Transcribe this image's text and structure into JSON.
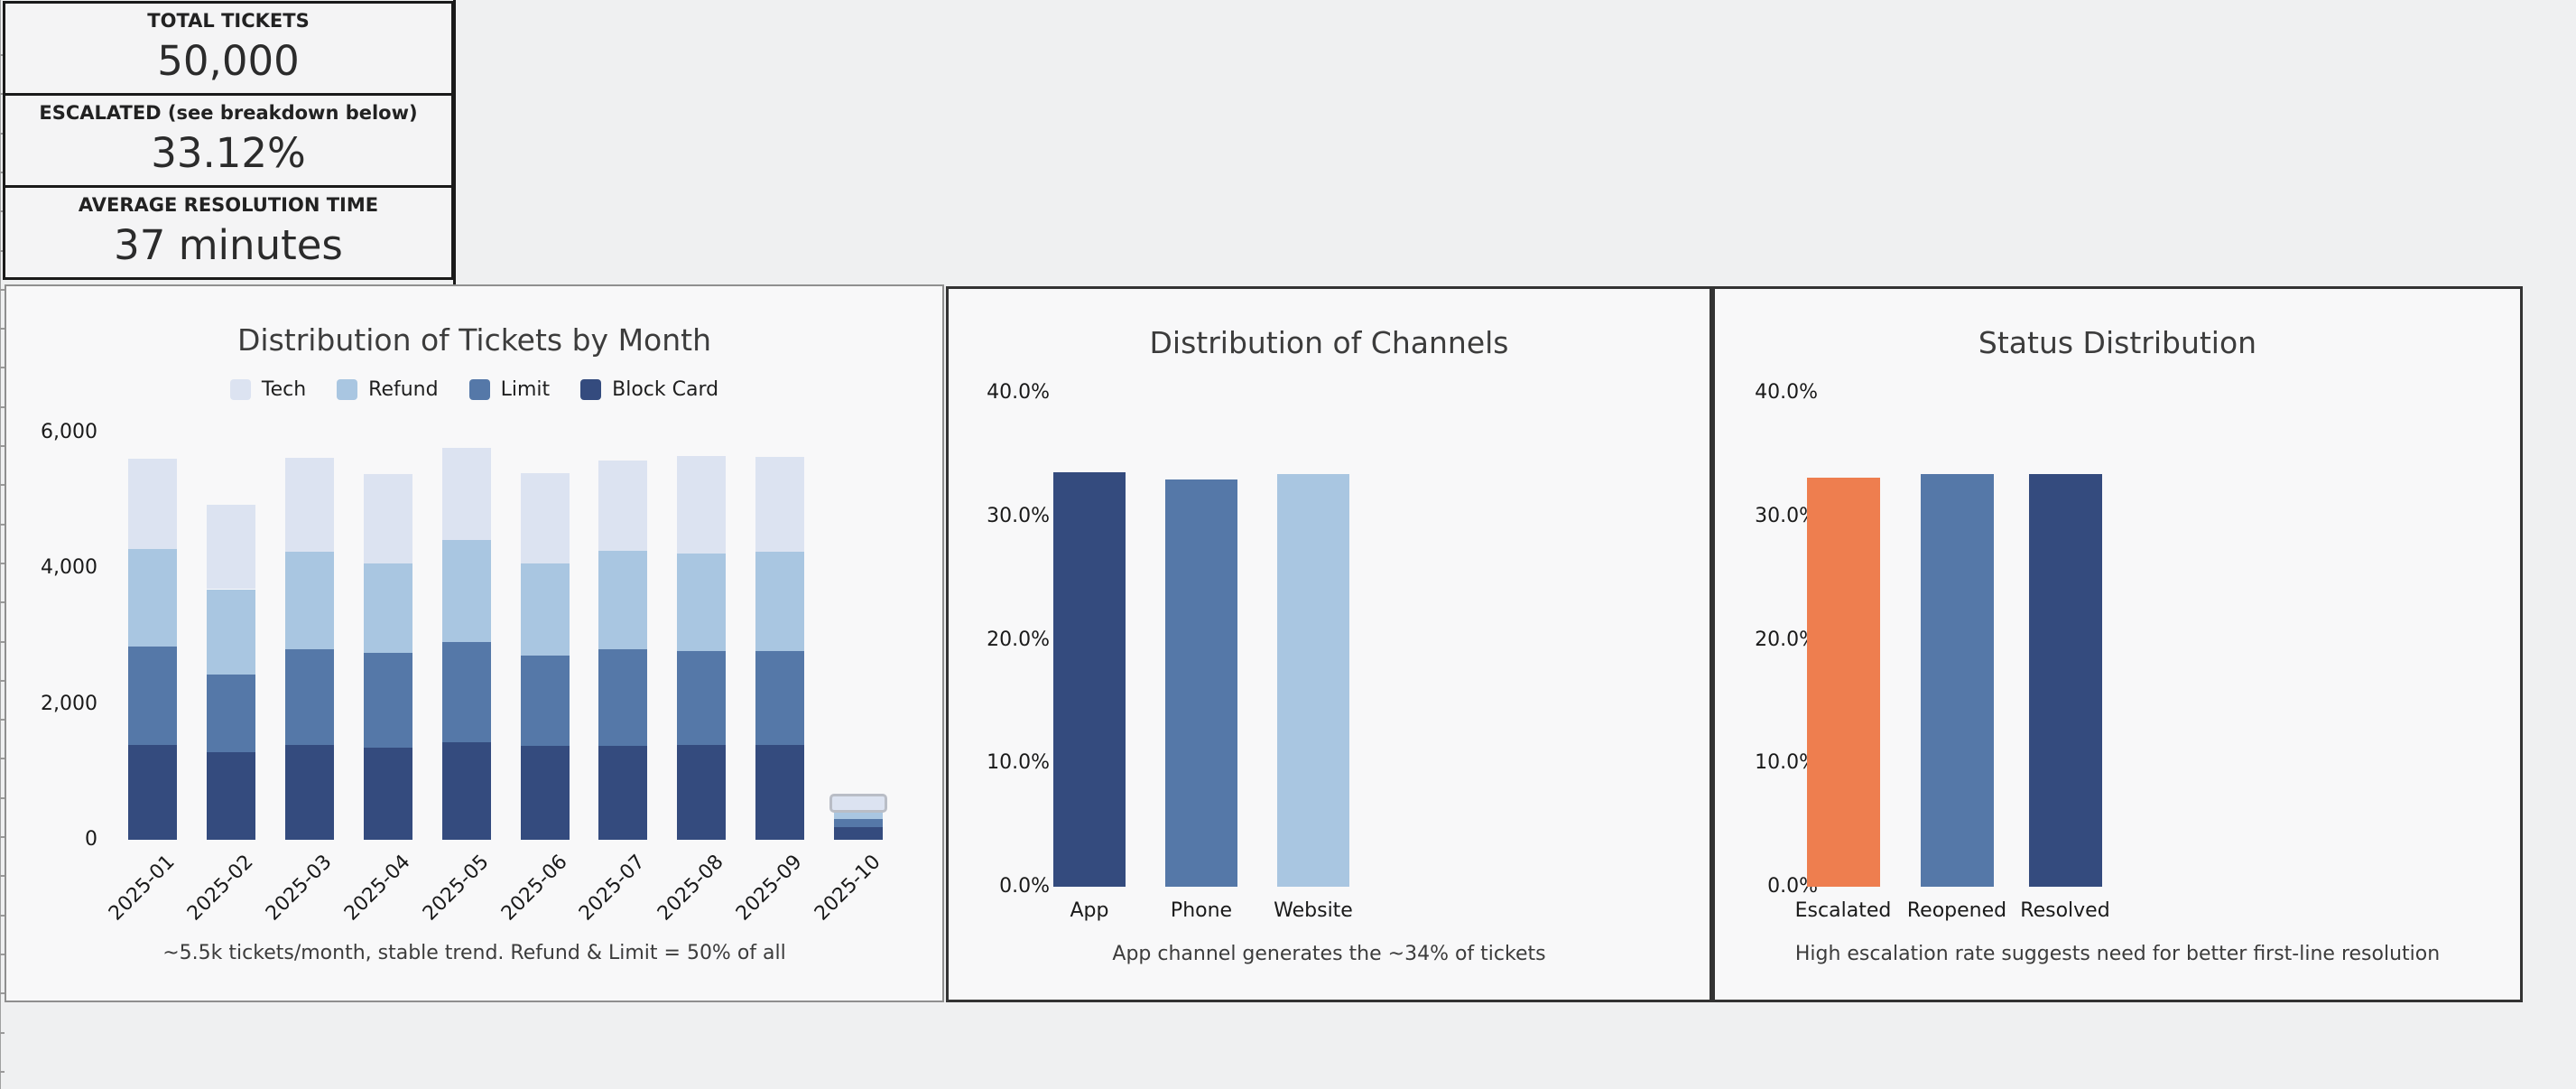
{
  "page": {
    "background": "#eff0f1"
  },
  "kpis": [
    {
      "label": "TOTAL TICKETS",
      "value": "50,000"
    },
    {
      "label": "ESCALATED (see breakdown below)",
      "value": "33.12%"
    },
    {
      "label": "AVERAGE RESOLUTION TIME",
      "value": "37 minutes"
    }
  ],
  "chart_data": [
    {
      "id": "tickets-by-month",
      "type": "bar",
      "stacked": true,
      "title": "Distribution of Tickets by Month",
      "caption": "~5.5k tickets/month, stable trend. Refund & Limit = 50% of all",
      "grid": false,
      "legend_position": "top",
      "categories": [
        "2025-01",
        "2025-02",
        "2025-03",
        "2025-04",
        "2025-05",
        "2025-06",
        "2025-07",
        "2025-08",
        "2025-09",
        "2025-10"
      ],
      "series": [
        {
          "name": "Block Card",
          "color": "#344b7e",
          "values": [
            1400,
            1290,
            1400,
            1360,
            1430,
            1380,
            1380,
            1395,
            1400,
            185
          ]
        },
        {
          "name": "Limit",
          "color": "#5578a8",
          "values": [
            1450,
            1140,
            1410,
            1390,
            1480,
            1330,
            1430,
            1390,
            1380,
            120
          ]
        },
        {
          "name": "Refund",
          "color": "#a9c6e1",
          "values": [
            1430,
            1260,
            1430,
            1320,
            1500,
            1360,
            1450,
            1430,
            1460,
            135
          ]
        },
        {
          "name": "Tech",
          "color": "#dce3f1",
          "values": [
            1330,
            1240,
            1380,
            1310,
            1360,
            1330,
            1330,
            1430,
            1400,
            160
          ]
        }
      ],
      "highlight": {
        "category": "2025-10",
        "series": "Tech"
      },
      "ylim": [
        0,
        6400
      ],
      "yticks": [
        {
          "value": 0,
          "label": "0"
        },
        {
          "value": 2000,
          "label": "2,000"
        },
        {
          "value": 4000,
          "label": "4,000"
        },
        {
          "value": 6000,
          "label": "6,000"
        }
      ]
    },
    {
      "id": "channels",
      "type": "bar",
      "stacked": false,
      "title": "Distribution of Channels",
      "caption": "App channel generates the ~34% of tickets",
      "grid": false,
      "categories": [
        "App",
        "Phone",
        "Website"
      ],
      "values": [
        33.6,
        33.0,
        33.4
      ],
      "colors": [
        "#344b7e",
        "#5578a8",
        "#a9c6e1"
      ],
      "ylim": [
        0,
        42
      ],
      "yticks": [
        {
          "value": 0,
          "label": "0.0%"
        },
        {
          "value": 10,
          "label": "10.0%"
        },
        {
          "value": 20,
          "label": "20.0%"
        },
        {
          "value": 30,
          "label": "30.0%"
        },
        {
          "value": 40,
          "label": "40.0%"
        }
      ]
    },
    {
      "id": "status",
      "type": "bar",
      "stacked": false,
      "title": "Status Distribution",
      "caption": "High escalation rate suggests need for better first-line resolution",
      "grid": false,
      "categories": [
        "Escalated",
        "Reopened",
        "Resolved"
      ],
      "values": [
        33.12,
        33.42,
        33.46
      ],
      "colors": [
        "#ee7e4f",
        "#5578a8",
        "#344b7e"
      ],
      "ylim": [
        0,
        42
      ],
      "yticks": [
        {
          "value": 0,
          "label": "0.0%"
        },
        {
          "value": 10,
          "label": "10.0%"
        },
        {
          "value": 20,
          "label": "20.0%"
        },
        {
          "value": 30,
          "label": "30.0%"
        },
        {
          "value": 40,
          "label": "40.0%"
        }
      ]
    }
  ],
  "colors": {
    "tech": "#dce3f1",
    "refund": "#a9c6e1",
    "limit": "#5578a8",
    "block_card": "#344b7e",
    "escalated_orange": "#ee7e4f"
  }
}
